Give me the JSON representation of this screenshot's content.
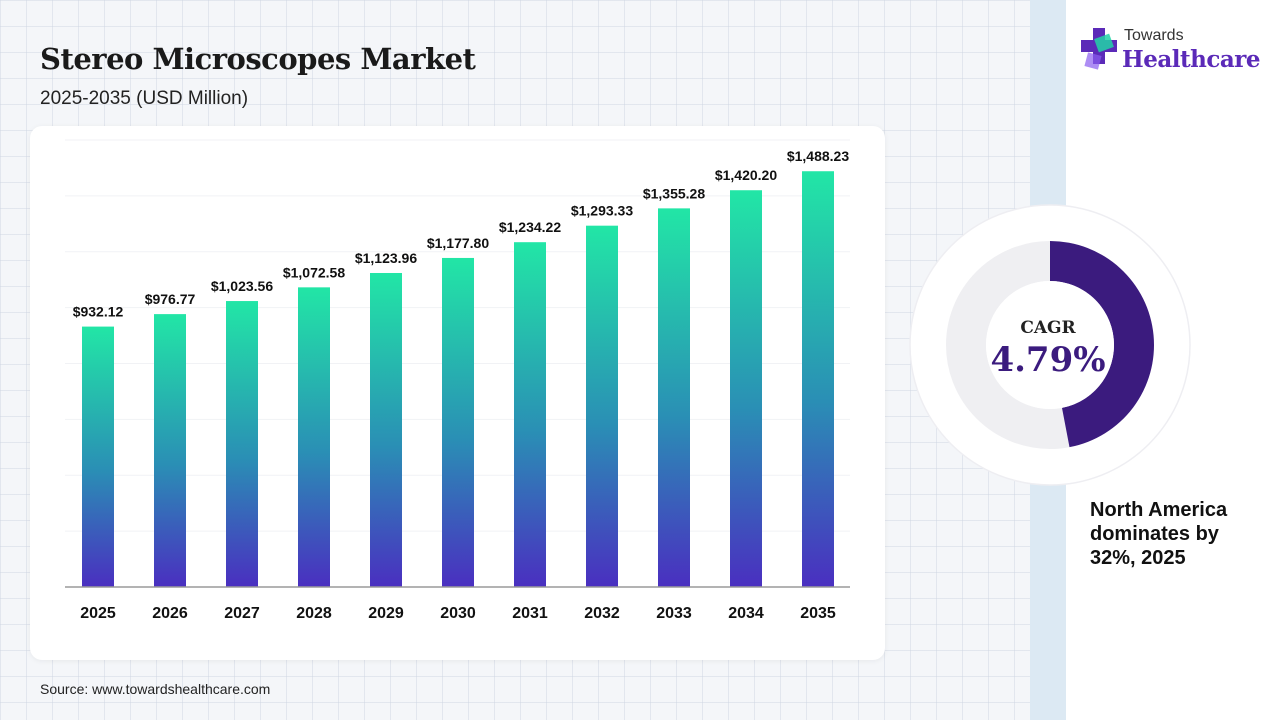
{
  "header": {
    "title": "Stereo Microscopes Market",
    "subtitle": "2025-2035 (USD Million)"
  },
  "source": "Source: www.towardshealthcare.com",
  "logo": {
    "top_text": "Towards",
    "main_text": "Healthcare",
    "icon": "medical-cross-icon"
  },
  "cagr": {
    "label": "CAGR",
    "value": "4.79%",
    "ring_fraction": 0.47
  },
  "dominance_text": "North America dominates by 32%, 2025",
  "colors": {
    "bar_top": "#22e6a6",
    "bar_mid": "#2a8fb5",
    "bar_bottom": "#4a2fc0",
    "donut_fill": "#3b1b7e",
    "donut_track": "#efeff2",
    "logo_purple": "#5b2ab8"
  },
  "chart_data": {
    "type": "bar",
    "categories": [
      "2025",
      "2026",
      "2027",
      "2028",
      "2029",
      "2030",
      "2031",
      "2032",
      "2033",
      "2034",
      "2035"
    ],
    "values": [
      932.12,
      976.77,
      1023.56,
      1072.58,
      1123.96,
      1177.8,
      1234.22,
      1293.33,
      1355.28,
      1420.2,
      1488.23
    ],
    "value_labels": [
      "$932.12",
      "$976.77",
      "$1,023.56",
      "$1,072.58",
      "$1,123.96",
      "$1,177.80",
      "$1,234.22",
      "$1,293.33",
      "$1,355.28",
      "$1,420.20",
      "$1,488.23"
    ],
    "title": "Stereo Microscopes Market",
    "xlabel": "",
    "ylabel": "",
    "ylim": [
      0,
      1600
    ],
    "grid": true,
    "legend": "none"
  }
}
